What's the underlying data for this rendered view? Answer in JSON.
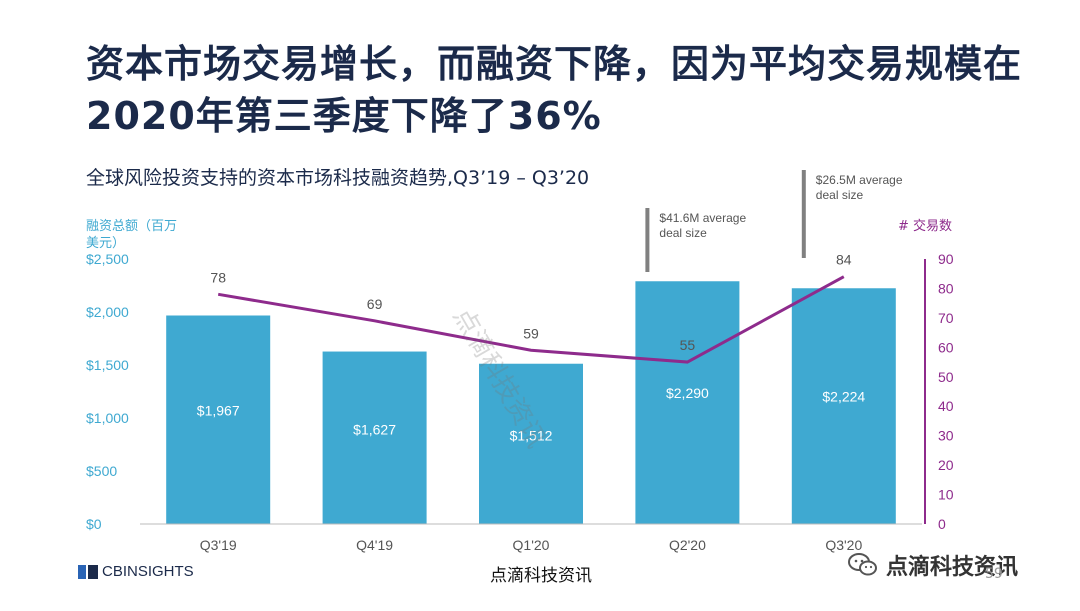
{
  "title": "资本市场交易增长，而融资下降，因为平均交易规模在2020年第三季度下降了36%",
  "subtitle": "全球风险投资支持的资本市场科技融资趋势,Q3’19 – Q3’20",
  "chart_data": {
    "type": "bar",
    "categories": [
      "Q3'19",
      "Q4'19",
      "Q1'20",
      "Q2'20",
      "Q3'20"
    ],
    "series": [
      {
        "name": "融资总额（百万美元）",
        "kind": "bar",
        "axis": "left",
        "values": [
          1967,
          1627,
          1512,
          2290,
          2224
        ],
        "labels": [
          "$1,967",
          "$1,627",
          "$1,512",
          "$2,290",
          "$2,224"
        ],
        "color": "#3fa9d1"
      },
      {
        "name": "# 交易数",
        "kind": "line",
        "axis": "right",
        "values": [
          78,
          69,
          59,
          55,
          84
        ],
        "labels": [
          "78",
          "69",
          "59",
          "55",
          "84"
        ],
        "color": "#8e2b8c"
      }
    ],
    "ylabel_left": "融资总额（百万美元）",
    "ylabel_right": "# 交易数",
    "ylim_left": [
      0,
      2500
    ],
    "ylim_right": [
      0,
      90
    ],
    "yticks_left": [
      "$0",
      "$500",
      "$1,000",
      "$1,500",
      "$2,000",
      "$2,500"
    ],
    "yticks_right": [
      "0",
      "10",
      "20",
      "30",
      "40",
      "50",
      "60",
      "70",
      "80",
      "90"
    ],
    "annotations": [
      {
        "category": "Q2'20",
        "text_line1": "$41.6M average",
        "text_line2": "deal size"
      },
      {
        "category": "Q3'20",
        "text_line1": "$26.5M average",
        "text_line2": "deal size"
      }
    ],
    "grid": false
  },
  "footer": {
    "logo_text": "CBINSIGHTS",
    "center_text": "点滴科技资讯",
    "wechat_text": "点滴科技资讯",
    "page_number": "59"
  },
  "watermark": "点滴科技资讯"
}
